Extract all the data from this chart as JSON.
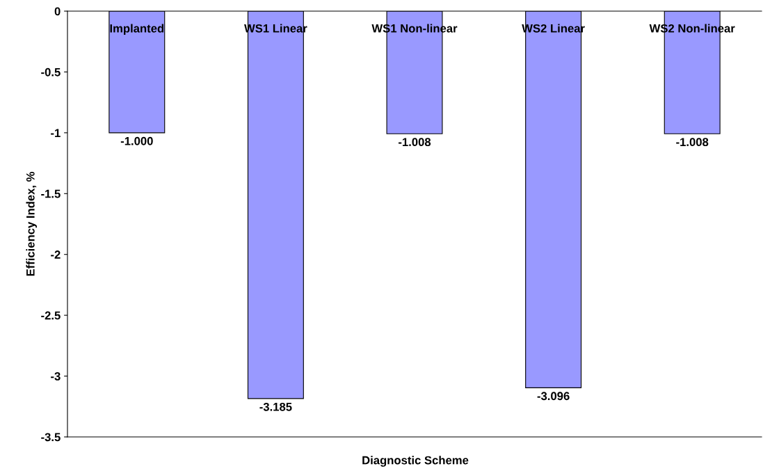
{
  "chart_data": {
    "type": "bar",
    "xlabel": "Diagnostic Scheme",
    "ylabel": "Efficiency Index, %",
    "categories": [
      "Implanted",
      "WS1 Linear",
      "WS1 Non-linear",
      "WS2 Linear",
      "WS2 Non-linear"
    ],
    "values": [
      -1.0,
      -3.185,
      -1.008,
      -3.096,
      -1.008
    ],
    "value_labels": [
      "-1.000",
      "-3.185",
      "-1.008",
      "-3.096",
      "-1.008"
    ],
    "color": "#9999ff",
    "ylim": [
      -3.5,
      0
    ],
    "yticks": [
      0,
      -0.5,
      -1,
      -1.5,
      -2,
      -2.5,
      -3,
      -3.5
    ],
    "grid": false,
    "legend": false
  }
}
